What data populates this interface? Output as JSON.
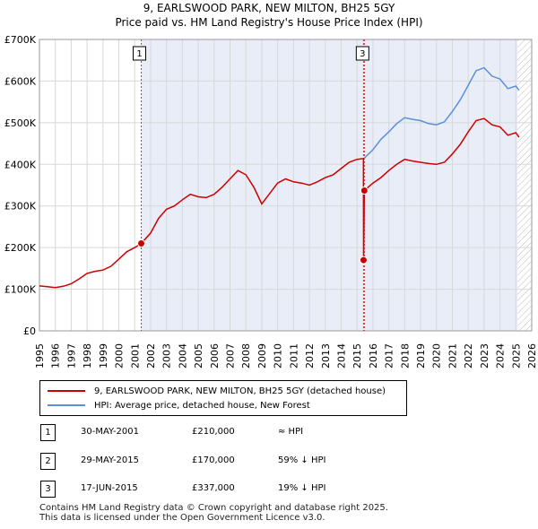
{
  "chart_data": {
    "type": "line",
    "title": "9, EARLSWOOD PARK, NEW MILTON, BH25 5GY",
    "subtitle": "Price paid vs. HM Land Registry's House Price Index (HPI)",
    "xlabel": "",
    "ylabel": "",
    "xlim": [
      1995,
      2026
    ],
    "ylim": [
      0,
      700000
    ],
    "x_ticks": [
      "1995",
      "1996",
      "1997",
      "1998",
      "1999",
      "2000",
      "2001",
      "2002",
      "2003",
      "2004",
      "2005",
      "2006",
      "2007",
      "2008",
      "2009",
      "2010",
      "2011",
      "2012",
      "2013",
      "2014",
      "2015",
      "2016",
      "2017",
      "2018",
      "2019",
      "2020",
      "2021",
      "2022",
      "2023",
      "2024",
      "2025",
      "2026"
    ],
    "y_ticks": [
      {
        "value": 0,
        "label": "£0"
      },
      {
        "value": 100000,
        "label": "£100K"
      },
      {
        "value": 200000,
        "label": "£200K"
      },
      {
        "value": 300000,
        "label": "£300K"
      },
      {
        "value": 400000,
        "label": "£400K"
      },
      {
        "value": 500000,
        "label": "£500K"
      },
      {
        "value": 600000,
        "label": "£600K"
      },
      {
        "value": 700000,
        "label": "£700K"
      }
    ],
    "shaded_region": [
      2001.41,
      2025.1
    ],
    "series": [
      {
        "name": "9, EARLSWOOD PARK, NEW MILTON, BH25 5GY (detached house)",
        "color": "#cc0000",
        "points": [
          [
            1995.0,
            108000
          ],
          [
            1995.5,
            106000
          ],
          [
            1996.0,
            104000
          ],
          [
            1996.5,
            107000
          ],
          [
            1997.0,
            113000
          ],
          [
            1997.5,
            125000
          ],
          [
            1998.0,
            138000
          ],
          [
            1998.5,
            143000
          ],
          [
            1999.0,
            146000
          ],
          [
            1999.5,
            155000
          ],
          [
            2000.0,
            172000
          ],
          [
            2000.5,
            190000
          ],
          [
            2001.0,
            200000
          ],
          [
            2001.41,
            210000
          ],
          [
            2002.0,
            235000
          ],
          [
            2002.5,
            270000
          ],
          [
            2003.0,
            292000
          ],
          [
            2003.5,
            300000
          ],
          [
            2004.0,
            315000
          ],
          [
            2004.5,
            328000
          ],
          [
            2005.0,
            322000
          ],
          [
            2005.5,
            320000
          ],
          [
            2006.0,
            328000
          ],
          [
            2006.5,
            345000
          ],
          [
            2007.0,
            365000
          ],
          [
            2007.5,
            385000
          ],
          [
            2008.0,
            375000
          ],
          [
            2008.5,
            345000
          ],
          [
            2009.0,
            305000
          ],
          [
            2009.5,
            330000
          ],
          [
            2010.0,
            355000
          ],
          [
            2010.5,
            365000
          ],
          [
            2011.0,
            358000
          ],
          [
            2011.5,
            355000
          ],
          [
            2012.0,
            350000
          ],
          [
            2012.5,
            358000
          ],
          [
            2013.0,
            368000
          ],
          [
            2013.5,
            375000
          ],
          [
            2014.0,
            390000
          ],
          [
            2014.5,
            405000
          ],
          [
            2015.0,
            412000
          ],
          [
            2015.4,
            414000
          ],
          [
            2015.41,
            170000
          ],
          [
            2015.46,
            337000
          ],
          [
            2016.0,
            355000
          ],
          [
            2016.5,
            368000
          ],
          [
            2017.0,
            385000
          ],
          [
            2017.5,
            400000
          ],
          [
            2018.0,
            412000
          ],
          [
            2018.5,
            408000
          ],
          [
            2019.0,
            405000
          ],
          [
            2019.5,
            402000
          ],
          [
            2020.0,
            400000
          ],
          [
            2020.5,
            405000
          ],
          [
            2021.0,
            425000
          ],
          [
            2021.5,
            448000
          ],
          [
            2022.0,
            478000
          ],
          [
            2022.5,
            505000
          ],
          [
            2023.0,
            510000
          ],
          [
            2023.5,
            495000
          ],
          [
            2024.0,
            490000
          ],
          [
            2024.5,
            470000
          ],
          [
            2025.0,
            476000
          ],
          [
            2025.2,
            465000
          ]
        ]
      },
      {
        "name": "HPI: Average price, detached house, New Forest",
        "color": "#5b8fd6",
        "points": [
          [
            2015.46,
            415000
          ],
          [
            2016.0,
            435000
          ],
          [
            2016.5,
            460000
          ],
          [
            2017.0,
            478000
          ],
          [
            2017.5,
            498000
          ],
          [
            2018.0,
            512000
          ],
          [
            2018.5,
            508000
          ],
          [
            2019.0,
            505000
          ],
          [
            2019.5,
            498000
          ],
          [
            2020.0,
            495000
          ],
          [
            2020.5,
            502000
          ],
          [
            2021.0,
            527000
          ],
          [
            2021.5,
            555000
          ],
          [
            2022.0,
            590000
          ],
          [
            2022.5,
            625000
          ],
          [
            2023.0,
            632000
          ],
          [
            2023.5,
            612000
          ],
          [
            2024.0,
            605000
          ],
          [
            2024.5,
            582000
          ],
          [
            2025.0,
            588000
          ],
          [
            2025.2,
            578000
          ]
        ]
      }
    ],
    "sales": [
      {
        "label": "1",
        "date": "30-MAY-2001",
        "x": 2001.41,
        "price": 210000,
        "relation": "≈ HPI"
      },
      {
        "label": "2",
        "date": "29-MAY-2015",
        "x": 2015.41,
        "price": 170000,
        "relation": "59% ↓ HPI"
      },
      {
        "label": "3",
        "date": "17-JUN-2015",
        "x": 2015.46,
        "price": 337000,
        "relation": "19% ↓ HPI"
      }
    ],
    "chart_markers": [
      {
        "label": "1",
        "x": 2001.41
      },
      {
        "label": "3",
        "x": 2015.46
      }
    ]
  },
  "legend": {
    "property_label": "9, EARLSWOOD PARK, NEW MILTON, BH25 5GY (detached house)",
    "hpi_label": "HPI: Average price, detached house, New Forest",
    "property_color": "#cc0000",
    "hpi_color": "#5b8fd6"
  },
  "table": {
    "rows": [
      {
        "num": "1",
        "date": "30-MAY-2001",
        "price": "£210,000",
        "relation": "≈ HPI"
      },
      {
        "num": "2",
        "date": "29-MAY-2015",
        "price": "£170,000",
        "relation": "59% ↓ HPI"
      },
      {
        "num": "3",
        "date": "17-JUN-2015",
        "price": "£337,000",
        "relation": "19% ↓ HPI"
      }
    ]
  },
  "footer": {
    "line1": "Contains HM Land Registry data © Crown copyright and database right 2025.",
    "line2": "This data is licensed under the Open Government Licence v3.0."
  }
}
